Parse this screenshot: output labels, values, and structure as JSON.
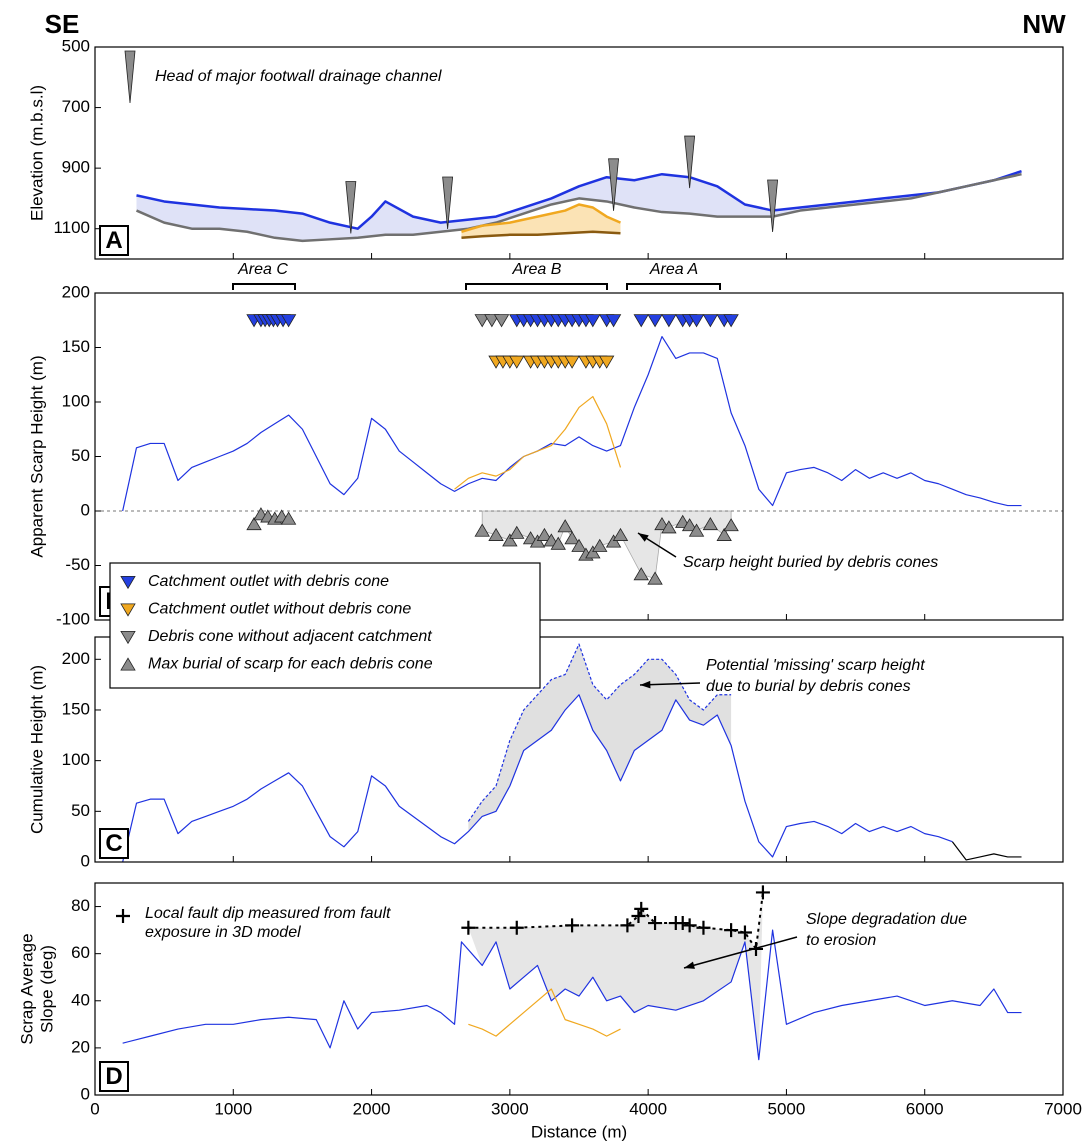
{
  "labels": [
    "SE",
    "NW"
  ],
  "chart_data": [
    {
      "type": "line",
      "panel": "A",
      "ylabel": "Elevation (m.b.s.l)",
      "xlim": [
        0,
        7000
      ],
      "ylim": [
        1200,
        500
      ],
      "yticks": [
        500,
        700,
        900,
        1100
      ],
      "area_labels": [
        "Area C",
        "Area B",
        "Area A"
      ],
      "series": [
        {
          "kind": "line",
          "color": "#1f33e0",
          "width": 2.5,
          "fill_to": 1,
          "fill": "#dfe2f7",
          "x": [
            300,
            500,
            700,
            900,
            1100,
            1300,
            1500,
            1700,
            1900,
            2000,
            2100,
            2300,
            2500,
            2700,
            2900,
            3100,
            3300,
            3500,
            3700,
            3900,
            4100,
            4300,
            4500,
            4700,
            4900,
            5100,
            5300,
            5500,
            5700,
            5900,
            6100,
            6300,
            6500,
            6700
          ],
          "values": [
            990,
            1010,
            1020,
            1030,
            1035,
            1040,
            1050,
            1080,
            1100,
            1060,
            1010,
            1060,
            1080,
            1070,
            1060,
            1030,
            1000,
            960,
            930,
            940,
            920,
            930,
            960,
            1020,
            1040,
            1030,
            1020,
            1010,
            1000,
            990,
            980,
            960,
            940,
            910
          ]
        },
        {
          "kind": "line",
          "color": "#707070",
          "width": 2.5,
          "x": [
            300,
            500,
            700,
            900,
            1100,
            1300,
            1500,
            1700,
            1900,
            2000,
            2100,
            2300,
            2500,
            2700,
            2900,
            3100,
            3300,
            3500,
            3700,
            3900,
            4100,
            4300,
            4500,
            4700,
            4900,
            5100,
            5300,
            5500,
            5700,
            5900,
            6100,
            6300,
            6500,
            6700
          ],
          "values": [
            1040,
            1080,
            1100,
            1100,
            1110,
            1130,
            1140,
            1135,
            1130,
            1125,
            1120,
            1120,
            1110,
            1100,
            1080,
            1050,
            1020,
            1000,
            1010,
            1030,
            1045,
            1050,
            1060,
            1060,
            1060,
            1040,
            1030,
            1020,
            1010,
            1000,
            980,
            960,
            940,
            920
          ]
        },
        {
          "kind": "line",
          "color": "#f0a820",
          "width": 2.5,
          "fill_to": 3,
          "fill": "#fbe3b5",
          "x": [
            2650,
            2800,
            3000,
            3200,
            3400,
            3500,
            3600,
            3700,
            3800
          ],
          "values": [
            1110,
            1090,
            1080,
            1060,
            1040,
            1020,
            1030,
            1060,
            1080
          ]
        },
        {
          "kind": "line",
          "color": "#8a5a10",
          "width": 2.5,
          "x": [
            2650,
            2800,
            3000,
            3200,
            3400,
            3600,
            3800
          ],
          "values": [
            1130,
            1125,
            1120,
            1120,
            1115,
            1110,
            1115
          ]
        },
        {
          "kind": "tall-tri-down",
          "color": "#8c8c8c",
          "name": "Head of major footwall drainage channel",
          "x": [
            1850,
            2550,
            3750,
            4300,
            4900
          ],
          "values": [
            1030,
            1015,
            955,
            880,
            1025
          ]
        }
      ]
    },
    {
      "type": "line",
      "panel": "B",
      "ylabel": "Apparent Scarp Height (m)",
      "xlim": [
        0,
        7000
      ],
      "ylim": [
        -100,
        200
      ],
      "yticks": [
        -100,
        -50,
        0,
        50,
        100,
        150,
        200
      ],
      "zero_line": true,
      "annotations": [
        [
          "Scarp height buried by debris cones"
        ]
      ],
      "series": [
        {
          "kind": "line",
          "color": "#1f33e0",
          "width": 1.2,
          "x": [
            200,
            300,
            400,
            500,
            600,
            700,
            800,
            900,
            1000,
            1100,
            1200,
            1300,
            1400,
            1500,
            1600,
            1700,
            1800,
            1900,
            2000,
            2100,
            2200,
            2300,
            2400,
            2500,
            2600,
            2700,
            2800,
            2900,
            3000,
            3100,
            3200,
            3300,
            3400,
            3500,
            3600,
            3700,
            3800,
            3900,
            4000,
            4100,
            4200,
            4300,
            4400,
            4500,
            4600,
            4700,
            4800,
            4900,
            5000,
            5100,
            5200,
            5300,
            5400,
            5500,
            5600,
            5700,
            5800,
            5900,
            6000,
            6100,
            6200,
            6300,
            6400,
            6500,
            6600,
            6700
          ],
          "values": [
            0,
            58,
            62,
            62,
            28,
            40,
            45,
            50,
            55,
            62,
            72,
            80,
            88,
            75,
            50,
            25,
            15,
            30,
            85,
            75,
            55,
            45,
            35,
            25,
            18,
            25,
            30,
            28,
            40,
            50,
            55,
            62,
            60,
            68,
            60,
            55,
            60,
            95,
            125,
            160,
            140,
            145,
            145,
            140,
            90,
            60,
            20,
            5,
            35,
            38,
            40,
            35,
            28,
            38,
            30,
            35,
            30,
            35,
            28,
            25,
            20,
            15,
            12,
            8,
            5,
            5
          ]
        },
        {
          "kind": "line",
          "color": "#f0a820",
          "width": 1.2,
          "x": [
            2600,
            2700,
            2800,
            2900,
            3000,
            3100,
            3200,
            3300,
            3400,
            3500,
            3600,
            3700,
            3800
          ],
          "values": [
            20,
            30,
            35,
            32,
            38,
            50,
            55,
            60,
            75,
            95,
            105,
            80,
            40
          ]
        },
        {
          "kind": "tri-down",
          "color": "#2440e0",
          "name": "Catchment outlet with debris cone",
          "x": [
            1150,
            1200,
            1230,
            1260,
            1290,
            1320,
            1360,
            1400,
            3050,
            3100,
            3150,
            3200,
            3250,
            3300,
            3350,
            3400,
            3450,
            3500,
            3550,
            3600,
            3700,
            3750,
            3950,
            4050,
            4150,
            4250,
            4300,
            4350,
            4450,
            4550,
            4600
          ],
          "values": [
            175,
            175,
            175,
            175,
            175,
            175,
            175,
            175,
            175,
            175,
            175,
            175,
            175,
            175,
            175,
            175,
            175,
            175,
            175,
            175,
            175,
            175,
            175,
            175,
            175,
            175,
            175,
            175,
            175,
            175,
            175
          ]
        },
        {
          "kind": "tri-down",
          "color": "#f0a820",
          "name": "Catchment outlet without debris cone",
          "x": [
            2900,
            2950,
            3000,
            3050,
            3150,
            3200,
            3250,
            3300,
            3350,
            3400,
            3450,
            3550,
            3600,
            3650,
            3700
          ],
          "values": [
            137,
            137,
            137,
            137,
            137,
            137,
            137,
            137,
            137,
            137,
            137,
            137,
            137,
            137,
            137
          ]
        },
        {
          "kind": "tri-down",
          "color": "#8c8c8c",
          "name": "Debris cone without adjacent catchment",
          "x": [
            2800,
            2870,
            2940
          ],
          "values": [
            175,
            175,
            175
          ]
        },
        {
          "kind": "tri-up",
          "color": "#8c8c8c",
          "name": "Max burial of scarp for each debris cone",
          "fill_to": "zero",
          "fill": "#e6e6e6",
          "x": [
            2800,
            2900,
            3000,
            3050,
            3150,
            3200,
            3250,
            3300,
            3350,
            3400,
            3450,
            3500,
            3550,
            3600,
            3650,
            3750,
            3800,
            3950,
            4050,
            4100,
            4150,
            4250,
            4300,
            4350,
            4450,
            4550,
            4600
          ],
          "values": [
            -18,
            -22,
            -27,
            -20,
            -25,
            -28,
            -22,
            -27,
            -30,
            -14,
            -25,
            -32,
            -40,
            -38,
            -32,
            -28,
            -22,
            -58,
            -62,
            -12,
            -15,
            -10,
            -13,
            -18,
            -12,
            -22,
            -13
          ]
        },
        {
          "kind": "tri-up",
          "color": "#8c8c8c",
          "x": [
            1150,
            1200,
            1250,
            1300,
            1350,
            1400
          ],
          "values": [
            -12,
            -3,
            -5,
            -7,
            -5,
            -7
          ]
        }
      ]
    },
    {
      "type": "line",
      "panel": "C",
      "ylabel": "Cumulative Height (m)",
      "xlim": [
        0,
        7000
      ],
      "ylim": [
        0,
        222
      ],
      "yticks": [
        0,
        50,
        100,
        150,
        200
      ],
      "annotations": [
        [
          "Potential 'missing' scarp height",
          "due to burial by debris cones"
        ]
      ],
      "series": [
        {
          "kind": "line",
          "color": "#1f33e0",
          "width": 1.2,
          "x": [
            200,
            300,
            400,
            500,
            600,
            700,
            800,
            900,
            1000,
            1100,
            1200,
            1300,
            1400,
            1500,
            1600,
            1700,
            1800,
            1900,
            2000,
            2100,
            2200,
            2300,
            2400,
            2500,
            2600,
            2700,
            2800,
            2900,
            3000,
            3100,
            3200,
            3300,
            3400,
            3500,
            3600,
            3700,
            3800,
            3900,
            4000,
            4100,
            4200,
            4300,
            4400,
            4500,
            4600,
            4700,
            4800,
            4900,
            5000,
            5100,
            5200,
            5300,
            5400,
            5500,
            5600,
            5700,
            5800,
            5900,
            6000,
            6100,
            6200,
            6300,
            6400,
            6500,
            6600,
            6700
          ],
          "values": [
            0,
            58,
            62,
            62,
            28,
            40,
            45,
            50,
            55,
            62,
            72,
            80,
            88,
            75,
            50,
            25,
            15,
            30,
            85,
            75,
            55,
            45,
            35,
            25,
            18,
            30,
            45,
            50,
            75,
            110,
            120,
            130,
            150,
            165,
            130,
            110,
            80,
            110,
            120,
            130,
            160,
            140,
            135,
            145,
            115,
            60,
            20,
            5,
            35,
            38,
            40,
            35,
            28,
            38,
            30,
            35,
            30,
            35,
            28,
            25,
            20,
            null,
            null,
            null,
            null,
            null
          ]
        },
        {
          "kind": "dashed",
          "color": "#1f33e0",
          "width": 1.2,
          "fill_to": 0,
          "fill": "#e0e0e0",
          "x": [
            2700,
            2800,
            2900,
            3000,
            3100,
            3200,
            3300,
            3400,
            3500,
            3600,
            3700,
            3800,
            3900,
            4000,
            4100,
            4200,
            4300,
            4400,
            4500,
            4600
          ],
          "values": [
            40,
            60,
            75,
            120,
            150,
            165,
            180,
            185,
            215,
            175,
            160,
            175,
            185,
            200,
            200,
            185,
            160,
            150,
            165,
            165
          ]
        },
        {
          "kind": "line",
          "color": "#000000",
          "width": 1.2,
          "x": [
            6200,
            6300,
            6400,
            6500,
            6600,
            6700
          ],
          "values": [
            20,
            2,
            5,
            8,
            5,
            5
          ]
        }
      ]
    },
    {
      "type": "line",
      "panel": "D",
      "ylabel": [
        "Scrap Average",
        "Slope (deg)"
      ],
      "xlabel": "Distance (m)",
      "xlim": [
        0,
        7000
      ],
      "xticks": [
        0,
        1000,
        2000,
        3000,
        4000,
        5000,
        6000,
        7000
      ],
      "ylim": [
        0,
        90
      ],
      "yticks": [
        0,
        20,
        40,
        60,
        80
      ],
      "annotations": [
        [
          "Slope degradation due",
          "to erosion"
        ]
      ],
      "series": [
        {
          "kind": "line",
          "color": "#1f33e0",
          "width": 1.2,
          "x": [
            200,
            400,
            600,
            800,
            1000,
            1200,
            1400,
            1600,
            1700,
            1800,
            1900,
            2000,
            2200,
            2400,
            2500,
            2600,
            2650,
            2800,
            2900,
            3000,
            3100,
            3200,
            3300,
            3400,
            3500,
            3600,
            3700,
            3800,
            3900,
            4000,
            4200,
            4400,
            4600,
            4700,
            4800,
            4900,
            5000,
            5200,
            5400,
            5600,
            5800,
            6000,
            6200,
            6400,
            6500,
            6600,
            6700
          ],
          "values": [
            22,
            25,
            28,
            30,
            30,
            32,
            33,
            32,
            20,
            40,
            28,
            35,
            36,
            38,
            35,
            30,
            65,
            55,
            65,
            45,
            50,
            55,
            40,
            45,
            42,
            50,
            40,
            42,
            35,
            38,
            36,
            40,
            48,
            65,
            15,
            70,
            30,
            35,
            38,
            40,
            42,
            38,
            40,
            38,
            45,
            35,
            35
          ]
        },
        {
          "kind": "line",
          "color": "#f0a820",
          "width": 1.2,
          "x": [
            2700,
            2800,
            2900,
            3000,
            3100,
            3200,
            3300,
            3400,
            3500,
            3600,
            3700,
            3800
          ],
          "values": [
            30,
            28,
            25,
            30,
            35,
            40,
            45,
            32,
            30,
            28,
            25,
            28
          ]
        },
        {
          "kind": "plus",
          "color": "#000000",
          "joined": "dashed",
          "fill_to": 0,
          "fill": "#e6e6e6",
          "name": "Local fault dip measured from fault exposure in 3D model",
          "x": [
            2700,
            3050,
            3450,
            3850,
            3930,
            3950,
            4050,
            4200,
            4250,
            4300,
            4400,
            4600,
            4700,
            4780,
            4830
          ],
          "values": [
            71,
            71,
            72,
            72,
            76,
            79,
            73,
            73,
            73,
            72,
            71,
            70,
            69,
            62,
            86
          ]
        }
      ]
    }
  ]
}
